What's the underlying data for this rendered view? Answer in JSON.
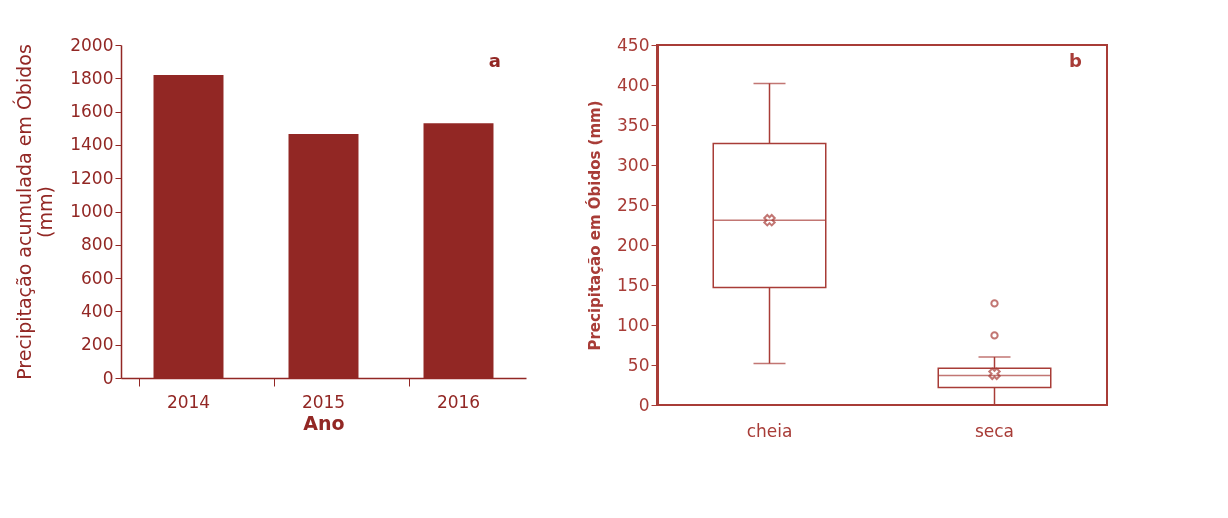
{
  "chart_data": [
    {
      "type": "bar",
      "categories": [
        "2014",
        "2015",
        "2016"
      ],
      "values": [
        1820,
        1465,
        1530
      ],
      "color": "#922724",
      "xlabel": "Ano",
      "ylabel": "Precipitação acumulada em Óbidos (mm)",
      "ylim": [
        0,
        2000
      ],
      "yticks": [
        0,
        200,
        400,
        600,
        800,
        1000,
        1200,
        1400,
        1600,
        1800,
        2000
      ],
      "grid": false,
      "annotations": [
        "a"
      ]
    },
    {
      "type": "box",
      "categories": [
        "cheia",
        "seca"
      ],
      "color": "#a83c37",
      "ylabel": "Precipitação em Óbidos (mm)",
      "ylim": [
        0,
        450
      ],
      "yticks": [
        0,
        50,
        100,
        150,
        200,
        250,
        300,
        350,
        400,
        450
      ],
      "grid": false,
      "marker": "cross",
      "annotations": [
        "b"
      ],
      "boxes": [
        {
          "low": 52,
          "q1": 147,
          "median": 231,
          "q3": 327,
          "high": 402,
          "mean": 231
        },
        {
          "low": 0,
          "q1": 22,
          "median": 37,
          "q3": 46,
          "high": 60,
          "mean": 39,
          "outliers": [
            87,
            127
          ]
        }
      ]
    }
  ]
}
